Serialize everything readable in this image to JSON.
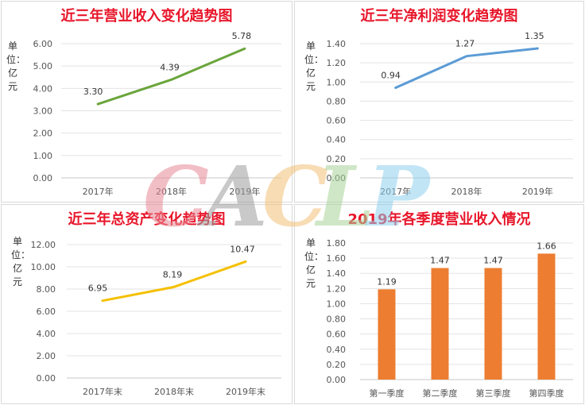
{
  "watermark": {
    "letters": [
      {
        "ch": "C",
        "color": "#e88a96"
      },
      {
        "ch": "A",
        "color": "#9e9e9e"
      },
      {
        "ch": "C",
        "color": "#f3c178"
      },
      {
        "ch": "L",
        "color": "#a9d59a"
      },
      {
        "ch": "P",
        "color": "#8fd0ee"
      }
    ]
  },
  "chart_data": [
    {
      "type": "line",
      "title": "近三年营业收入变化趋势图",
      "ylabel": "单位：亿元",
      "categories": [
        "2017年",
        "2018年",
        "2019年"
      ],
      "values": [
        3.3,
        4.39,
        5.78
      ],
      "value_labels": [
        "3.30",
        "4.39",
        "5.78"
      ],
      "ylim": [
        0,
        6
      ],
      "yticks": [
        "0.00",
        "1.00",
        "2.00",
        "3.00",
        "4.00",
        "5.00",
        "6.00"
      ],
      "color": "#6aa53b",
      "grid": true,
      "legend": "none"
    },
    {
      "type": "line",
      "title": "近三年净利润变化趋势图",
      "ylabel": "单位：亿元",
      "categories": [
        "2017年",
        "2018年",
        "2019年"
      ],
      "values": [
        0.94,
        1.27,
        1.35
      ],
      "value_labels": [
        "0.94",
        "1.27",
        "1.35"
      ],
      "ylim": [
        0,
        1.4
      ],
      "yticks": [
        "0.00",
        "0.20",
        "0.40",
        "0.60",
        "0.80",
        "1.00",
        "1.20",
        "1.40"
      ],
      "color": "#5b9bd5",
      "grid": true,
      "legend": "none"
    },
    {
      "type": "line",
      "title": "近三年总资产变化趋势图",
      "ylabel": "单位：亿元",
      "categories": [
        "2017年末",
        "2018年末",
        "2019年末"
      ],
      "values": [
        6.95,
        8.19,
        10.47
      ],
      "value_labels": [
        "6.95",
        "8.19",
        "10.47"
      ],
      "ylim": [
        0,
        12
      ],
      "yticks": [
        "0.00",
        "2.00",
        "4.00",
        "6.00",
        "8.00",
        "10.00",
        "12.00"
      ],
      "color": "#f5c000",
      "grid": true,
      "legend": "none"
    },
    {
      "type": "bar",
      "title": "2019年各季度营业收入情况",
      "ylabel": "单位：亿元",
      "categories": [
        "第一季度",
        "第二季度",
        "第三季度",
        "第四季度"
      ],
      "values": [
        1.19,
        1.47,
        1.47,
        1.66
      ],
      "value_labels": [
        "1.19",
        "1.47",
        "1.47",
        "1.66"
      ],
      "ylim": [
        0,
        1.8
      ],
      "yticks": [
        "0.00",
        "0.20",
        "0.40",
        "0.60",
        "0.80",
        "1.00",
        "1.20",
        "1.40",
        "1.60",
        "1.80"
      ],
      "color": "#ed7d31",
      "grid": true,
      "legend": "none"
    }
  ]
}
